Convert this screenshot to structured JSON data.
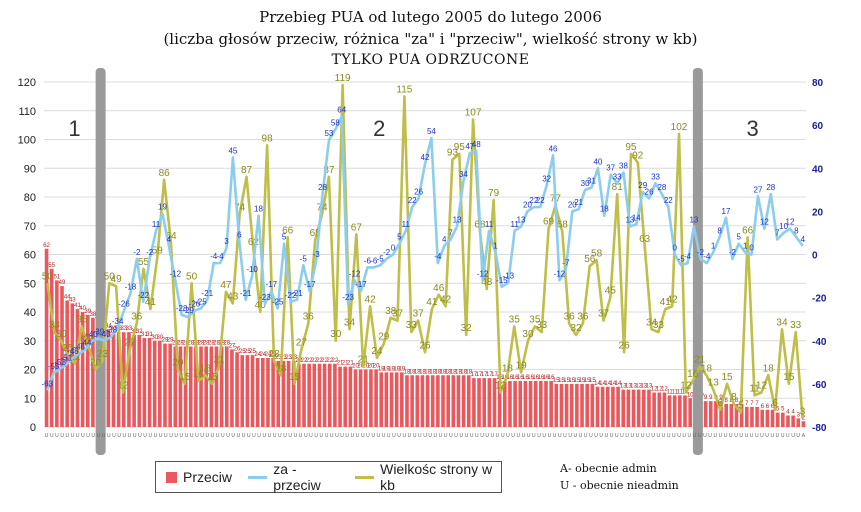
{
  "chart_data": {
    "type": "bar+line",
    "title_lines": [
      "Przebieg PUA od lutego 2005 do lutego 2006",
      "(liczba głosów przeciw, różnica \"za\" i \"przeciw\", wielkość strony w kb)",
      "TYLKO PUA ODRZUCONE"
    ],
    "y_left": {
      "min": 0,
      "max": 120,
      "step": 10
    },
    "y_right": {
      "min": -80,
      "max": 80,
      "step": 20
    },
    "phase_labels": [
      "1",
      "2",
      "3"
    ],
    "phase_separators_index": [
      11,
      127
    ],
    "colors": {
      "bars": "#e8585c",
      "diff": "#8ccdee",
      "size": "#bebe48",
      "separator": "#9a9a9a",
      "bar_labels": "#b22020",
      "diff_labels": "#1a33cc",
      "size_labels": "#8a8a1e"
    },
    "x_category_letters": [
      "U",
      "U",
      "U",
      "U",
      "U",
      "U",
      "U",
      "U",
      "U",
      "U",
      "U",
      "U",
      "U",
      "U",
      "U",
      "U",
      "U",
      "U",
      "U",
      "U",
      "U",
      "U",
      "U",
      "U",
      "U",
      "U",
      "U",
      "U",
      "U",
      "U",
      "U",
      "U",
      "U",
      "U",
      "U",
      "U",
      "U",
      "U",
      "U",
      "U",
      "U",
      "U",
      "U",
      "U",
      "U",
      "U",
      "U",
      "U",
      "U",
      "U",
      "U",
      "U",
      "U",
      "U",
      "U",
      "U",
      "U",
      "U",
      "U",
      "U",
      "U",
      "U",
      "U",
      "U",
      "U",
      "U",
      "U",
      "U",
      "U",
      "U",
      "U",
      "U",
      "U",
      "U",
      "U",
      "U",
      "U",
      "U",
      "U",
      "U",
      "U",
      "U",
      "U",
      "U",
      "U",
      "U",
      "U",
      "U",
      "U",
      "U",
      "U",
      "U",
      "U",
      "U",
      "U",
      "U",
      "U",
      "U",
      "U",
      "U",
      "U",
      "U",
      "U",
      "U",
      "U",
      "U",
      "U",
      "U",
      "U",
      "U",
      "U",
      "U",
      "U",
      "U",
      "U",
      "U",
      "U",
      "U",
      "U",
      "U",
      "U",
      "U",
      "U",
      "U",
      "U",
      "U",
      "U",
      "U",
      "U",
      "U",
      "U",
      "U",
      "U",
      "U",
      "U",
      "U",
      "U",
      "U",
      "U",
      "U",
      "U",
      "U",
      "U",
      "U",
      "U",
      "U",
      "A"
    ],
    "series": [
      {
        "name": "Przeciw",
        "values": [
          62,
          55,
          51,
          49,
          44,
          43,
          41,
          40,
          39,
          38,
          37,
          36,
          34,
          33,
          33,
          33,
          33,
          32,
          32,
          31,
          31,
          30,
          30,
          29,
          29,
          28,
          28,
          28,
          28,
          28,
          28,
          28,
          28,
          28,
          28,
          28,
          27,
          26,
          25,
          25,
          25,
          24,
          24,
          24,
          24,
          23,
          23,
          23,
          23,
          22,
          22,
          22,
          22,
          22,
          22,
          22,
          22,
          21,
          21,
          21,
          20,
          20,
          20,
          20,
          20,
          19,
          19,
          19,
          19,
          19,
          18,
          18,
          18,
          18,
          18,
          18,
          18,
          18,
          18,
          18,
          18,
          18,
          18,
          17,
          17,
          17,
          17,
          17,
          16,
          16,
          16,
          16,
          16,
          16,
          16,
          16,
          16,
          16,
          16,
          15,
          15,
          15,
          15,
          15,
          15,
          15,
          15,
          14,
          14,
          14,
          14,
          14,
          13,
          13,
          13,
          13,
          13,
          13,
          12,
          12,
          12,
          11,
          11,
          11,
          11,
          10,
          10,
          10,
          9,
          9,
          9,
          9,
          8,
          8,
          8,
          8,
          7,
          7,
          7,
          6,
          6,
          6,
          5,
          5,
          4,
          4,
          3,
          2
        ]
      },
      {
        "name": "za - przeciw",
        "values": [
          -63,
          -55,
          -53,
          -51,
          -48,
          -46,
          -44,
          -40,
          -39,
          -40,
          -38,
          -34,
          -26,
          -18,
          -2,
          -22,
          -2,
          11,
          19,
          4,
          -12,
          -28,
          -29,
          -26,
          -25,
          -21,
          -4,
          -4,
          3,
          45,
          6,
          -21,
          -10,
          18,
          -23,
          -17,
          -25,
          5,
          -22,
          -21,
          -5,
          -17,
          -3,
          28,
          53,
          58,
          64,
          -23,
          -12,
          -17,
          -6,
          -6,
          -5,
          -2,
          0,
          5,
          11,
          22,
          26,
          42,
          54,
          -4,
          4,
          7,
          13,
          34,
          47,
          48,
          -12,
          11,
          1,
          -15,
          -13,
          11,
          13,
          20,
          22,
          22,
          32,
          46,
          -12,
          -7,
          20,
          21,
          30,
          31,
          40,
          18,
          37,
          33,
          38,
          13,
          14,
          29,
          26,
          33,
          28,
          22,
          0,
          -5,
          -4,
          13,
          -2,
          -4,
          1,
          8,
          17,
          -2,
          5,
          1,
          0,
          27,
          12,
          28,
          7,
          10,
          12,
          8,
          4
        ]
      },
      {
        "name": "Wielkośc strony w kb",
        "values": [
          50,
          33,
          30,
          25,
          22,
          35,
          28,
          20,
          23,
          50,
          49,
          12,
          27,
          36,
          55,
          41,
          59,
          86,
          64,
          20,
          15,
          50,
          16,
          18,
          15,
          21,
          47,
          43,
          74,
          87,
          62,
          40,
          98,
          23,
          18,
          66,
          15,
          27,
          36,
          65,
          74,
          87,
          30,
          119,
          34,
          67,
          21,
          42,
          24,
          29,
          38,
          37,
          115,
          33,
          37,
          26,
          41,
          46,
          42,
          93,
          95,
          32,
          107,
          68,
          48,
          79,
          12,
          18,
          35,
          19,
          30,
          35,
          33,
          69,
          77,
          68,
          36,
          32,
          36,
          56,
          58,
          37,
          45,
          81,
          26,
          95,
          92,
          63,
          34,
          33,
          41,
          42,
          102,
          12,
          16,
          21,
          18,
          13,
          6,
          15,
          8,
          5,
          66,
          11,
          12,
          18,
          6,
          34,
          15,
          33,
          3
        ]
      }
    ],
    "bar_labels": [
      62,
      55,
      51,
      49,
      44,
      43,
      41,
      40,
      39,
      38,
      37,
      36,
      34,
      33,
      33,
      33,
      33,
      32,
      32,
      31,
      31,
      30,
      30,
      29,
      29,
      28,
      28,
      28,
      28,
      28,
      28,
      28,
      28,
      28,
      28,
      28,
      27,
      26,
      25,
      25,
      25,
      24,
      24,
      24,
      24,
      23,
      23,
      23,
      23,
      22,
      22,
      22,
      22,
      22,
      22,
      22,
      22,
      21,
      21,
      21,
      20,
      20,
      20,
      20,
      20,
      19,
      19,
      19,
      19,
      19,
      18,
      18,
      18,
      18,
      18,
      18,
      18,
      18,
      18,
      18,
      18,
      18,
      18,
      17,
      17,
      17,
      17,
      17,
      16,
      16,
      16,
      16,
      16,
      16,
      16,
      16,
      16,
      16,
      16,
      15,
      15,
      15,
      15,
      15,
      15,
      15,
      15,
      14,
      14,
      14,
      14,
      14,
      13,
      13,
      13,
      13,
      13,
      13,
      12,
      12,
      12,
      11,
      11,
      11,
      11,
      10,
      10,
      10,
      9,
      9,
      9,
      9,
      8,
      8,
      8,
      8,
      7,
      7,
      7,
      6,
      6,
      6,
      5,
      5,
      4,
      4,
      3,
      2
    ]
  },
  "legend": {
    "bars_label": "Przeciw",
    "diff_label": "za - przeciw",
    "size_label": "Wielkośc strony w kb"
  },
  "notes": {
    "admin": "A- obecnie admin",
    "nonadmin": "U - obecnie nieadmin"
  }
}
